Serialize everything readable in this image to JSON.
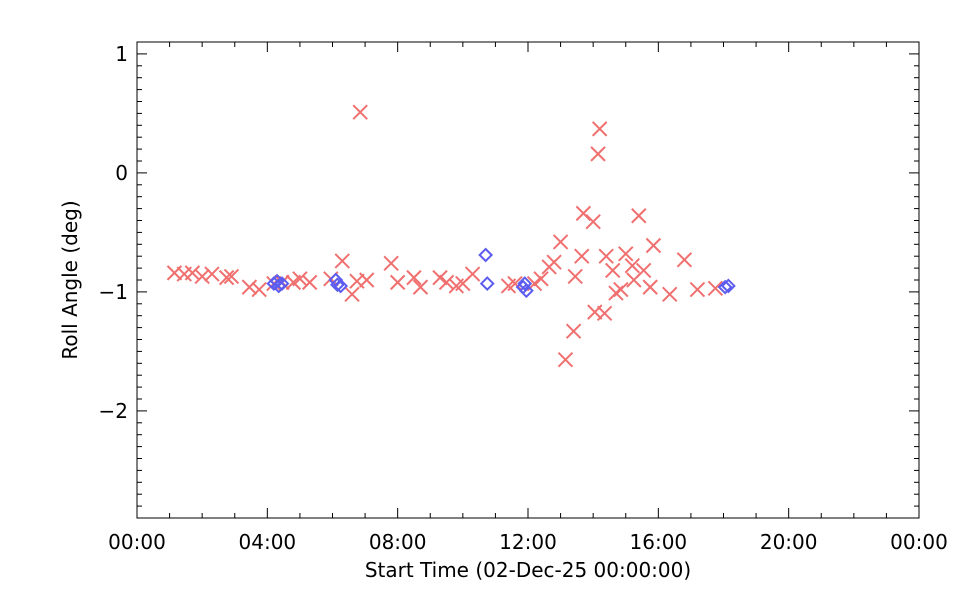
{
  "chart_data": {
    "type": "scatter",
    "xlabel": "Start Time (02-Dec-25 00:00:00)",
    "ylabel": "Roll Angle (deg)",
    "xlim": [
      0,
      24
    ],
    "ylim": [
      -2.9,
      1.1
    ],
    "x_tick_values": [
      0,
      4,
      8,
      12,
      16,
      20,
      24
    ],
    "x_tick_labels": [
      "00:00",
      "04:00",
      "08:00",
      "12:00",
      "16:00",
      "20:00",
      "00:00"
    ],
    "y_tick_values": [
      1,
      0,
      -1,
      -2
    ],
    "y_tick_labels": [
      "1",
      "0",
      "−1",
      "−2"
    ],
    "grid": false,
    "series": [
      {
        "marker": "x",
        "color": "#f07070",
        "points": [
          [
            1.15,
            -0.84
          ],
          [
            1.45,
            -0.85
          ],
          [
            1.7,
            -0.84
          ],
          [
            2.0,
            -0.87
          ],
          [
            2.3,
            -0.85
          ],
          [
            2.75,
            -0.88
          ],
          [
            2.9,
            -0.87
          ],
          [
            3.45,
            -0.96
          ],
          [
            3.75,
            -0.98
          ],
          [
            4.2,
            -0.93
          ],
          [
            4.45,
            -0.92
          ],
          [
            4.8,
            -0.92
          ],
          [
            5.0,
            -0.89
          ],
          [
            5.3,
            -0.92
          ],
          [
            5.95,
            -0.89
          ],
          [
            6.3,
            -0.74
          ],
          [
            6.6,
            -1.02
          ],
          [
            6.75,
            -0.91
          ],
          [
            6.85,
            0.51
          ],
          [
            7.05,
            -0.9
          ],
          [
            7.8,
            -0.76
          ],
          [
            8.0,
            -0.92
          ],
          [
            8.5,
            -0.88
          ],
          [
            8.7,
            -0.96
          ],
          [
            9.3,
            -0.88
          ],
          [
            9.5,
            -0.92
          ],
          [
            9.8,
            -0.95
          ],
          [
            10.0,
            -0.93
          ],
          [
            10.3,
            -0.85
          ],
          [
            11.4,
            -0.95
          ],
          [
            11.6,
            -0.93
          ],
          [
            12.2,
            -0.93
          ],
          [
            12.4,
            -0.89
          ],
          [
            12.65,
            -0.79
          ],
          [
            12.8,
            -0.75
          ],
          [
            13.0,
            -0.58
          ],
          [
            13.15,
            -1.57
          ],
          [
            13.4,
            -1.33
          ],
          [
            13.45,
            -0.87
          ],
          [
            13.65,
            -0.7
          ],
          [
            13.7,
            -0.34
          ],
          [
            14.0,
            -0.41
          ],
          [
            14.05,
            -1.17
          ],
          [
            14.15,
            0.16
          ],
          [
            14.2,
            0.37
          ],
          [
            14.35,
            -1.18
          ],
          [
            14.4,
            -0.7
          ],
          [
            14.6,
            -0.82
          ],
          [
            14.7,
            -1.01
          ],
          [
            14.85,
            -0.98
          ],
          [
            15.0,
            -0.68
          ],
          [
            15.2,
            -0.78
          ],
          [
            15.25,
            -0.9
          ],
          [
            15.4,
            -0.36
          ],
          [
            15.55,
            -0.82
          ],
          [
            15.75,
            -0.96
          ],
          [
            15.85,
            -0.61
          ],
          [
            16.35,
            -1.02
          ],
          [
            16.8,
            -0.73
          ],
          [
            17.2,
            -0.98
          ],
          [
            17.75,
            -0.97
          ]
        ]
      },
      {
        "marker": "diamond",
        "color": "#5c5cf0",
        "points": [
          [
            4.2,
            -0.93
          ],
          [
            4.3,
            -0.91
          ],
          [
            4.35,
            -0.95
          ],
          [
            4.45,
            -0.93
          ],
          [
            6.1,
            -0.9
          ],
          [
            6.15,
            -0.94
          ],
          [
            6.25,
            -0.95
          ],
          [
            10.7,
            -0.69
          ],
          [
            10.75,
            -0.93
          ],
          [
            11.85,
            -0.96
          ],
          [
            11.9,
            -0.93
          ],
          [
            11.95,
            -0.99
          ],
          [
            18.05,
            -0.96
          ],
          [
            18.15,
            -0.95
          ]
        ]
      }
    ]
  }
}
